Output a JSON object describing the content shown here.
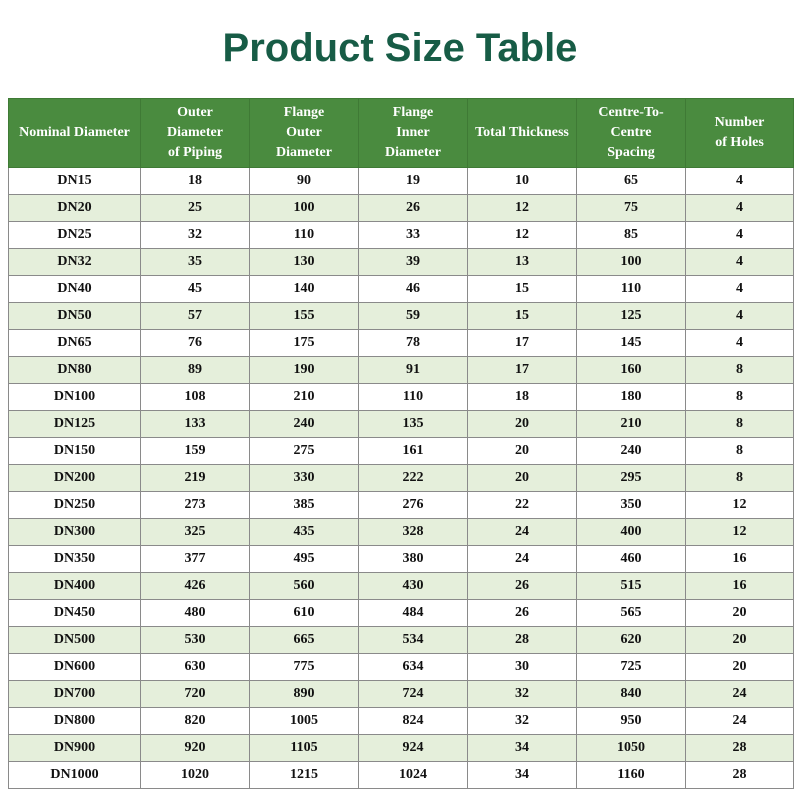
{
  "title": "Product Size Table",
  "columns": [
    "Nominal Diameter",
    "Outer\nDiameter\nof Piping",
    "Flange\nOuter\nDiameter",
    "Flange\nInner\nDiameter",
    "Total Thickness",
    "Centre-To-\nCentre\nSpacing",
    "Number\nof Holes"
  ],
  "rows": [
    [
      "DN15",
      "18",
      "90",
      "19",
      "10",
      "65",
      "4"
    ],
    [
      "DN20",
      "25",
      "100",
      "26",
      "12",
      "75",
      "4"
    ],
    [
      "DN25",
      "32",
      "110",
      "33",
      "12",
      "85",
      "4"
    ],
    [
      "DN32",
      "35",
      "130",
      "39",
      "13",
      "100",
      "4"
    ],
    [
      "DN40",
      "45",
      "140",
      "46",
      "15",
      "110",
      "4"
    ],
    [
      "DN50",
      "57",
      "155",
      "59",
      "15",
      "125",
      "4"
    ],
    [
      "DN65",
      "76",
      "175",
      "78",
      "17",
      "145",
      "4"
    ],
    [
      "DN80",
      "89",
      "190",
      "91",
      "17",
      "160",
      "8"
    ],
    [
      "DN100",
      "108",
      "210",
      "110",
      "18",
      "180",
      "8"
    ],
    [
      "DN125",
      "133",
      "240",
      "135",
      "20",
      "210",
      "8"
    ],
    [
      "DN150",
      "159",
      "275",
      "161",
      "20",
      "240",
      "8"
    ],
    [
      "DN200",
      "219",
      "330",
      "222",
      "20",
      "295",
      "8"
    ],
    [
      "DN250",
      "273",
      "385",
      "276",
      "22",
      "350",
      "12"
    ],
    [
      "DN300",
      "325",
      "435",
      "328",
      "24",
      "400",
      "12"
    ],
    [
      "DN350",
      "377",
      "495",
      "380",
      "24",
      "460",
      "16"
    ],
    [
      "DN400",
      "426",
      "560",
      "430",
      "26",
      "515",
      "16"
    ],
    [
      "DN450",
      "480",
      "610",
      "484",
      "26",
      "565",
      "20"
    ],
    [
      "DN500",
      "530",
      "665",
      "534",
      "28",
      "620",
      "20"
    ],
    [
      "DN600",
      "630",
      "775",
      "634",
      "30",
      "725",
      "20"
    ],
    [
      "DN700",
      "720",
      "890",
      "724",
      "32",
      "840",
      "24"
    ],
    [
      "DN800",
      "820",
      "1005",
      "824",
      "32",
      "950",
      "24"
    ],
    [
      "DN900",
      "920",
      "1105",
      "924",
      "34",
      "1050",
      "28"
    ],
    [
      "DN1000",
      "1020",
      "1215",
      "1024",
      "34",
      "1160",
      "28"
    ]
  ],
  "colors": {
    "title": "#175c46",
    "header_bg": "#4a8b3f",
    "row_alt_bg": "#e5efdb",
    "row_bg": "#ffffff"
  }
}
